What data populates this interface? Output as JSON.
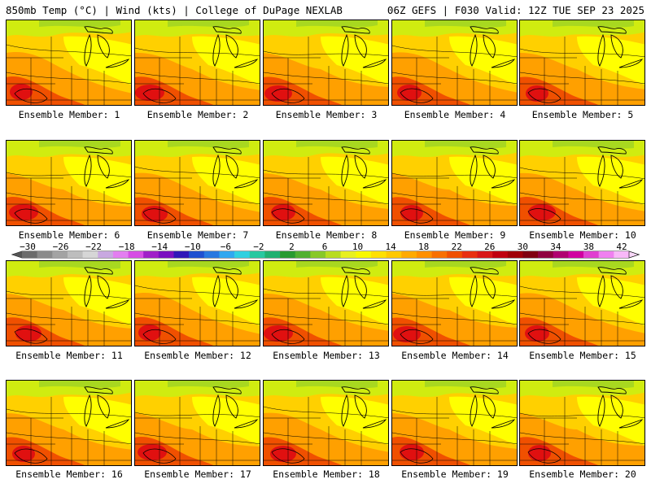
{
  "header": {
    "left": "850mb Temp (°C) | Wind (kts) | College of DuPage NEXLAB",
    "right": "06Z GEFS | F030 Valid: 12Z TUE SEP 23 2025"
  },
  "panels": [
    {
      "label": "Ensemble Member: 1"
    },
    {
      "label": "Ensemble Member: 2"
    },
    {
      "label": "Ensemble Member: 3"
    },
    {
      "label": "Ensemble Member: 4"
    },
    {
      "label": "Ensemble Member: 5"
    },
    {
      "label": "Ensemble Member: 6"
    },
    {
      "label": "Ensemble Member: 7"
    },
    {
      "label": "Ensemble Member: 8"
    },
    {
      "label": "Ensemble Member: 9"
    },
    {
      "label": "Ensemble Member: 10"
    },
    {
      "label": "Ensemble Member: 11"
    },
    {
      "label": "Ensemble Member: 12"
    },
    {
      "label": "Ensemble Member: 13"
    },
    {
      "label": "Ensemble Member: 14"
    },
    {
      "label": "Ensemble Member: 15"
    },
    {
      "label": "Ensemble Member: 16"
    },
    {
      "label": "Ensemble Member: 17"
    },
    {
      "label": "Ensemble Member: 18"
    },
    {
      "label": "Ensemble Member: 19"
    },
    {
      "label": "Ensemble Member: 20"
    }
  ],
  "colorbar": {
    "ticks": [
      "−30",
      "−26",
      "−22",
      "−18",
      "−14",
      "−10",
      "−6",
      "−2",
      "2",
      "6",
      "10",
      "14",
      "18",
      "22",
      "26",
      "30",
      "34",
      "38",
      "42"
    ],
    "colors": [
      "#6b6b6b",
      "#8a8a8a",
      "#a3a3a3",
      "#bdbdbd",
      "#d6d6d6",
      "#c8a8e0",
      "#e37ef0",
      "#d64ce4",
      "#a020c8",
      "#7a10c0",
      "#3018b8",
      "#1f50d0",
      "#2878e0",
      "#30a8f0",
      "#30d0e0",
      "#28c8a0",
      "#20b070",
      "#289a30",
      "#50b030",
      "#88c828",
      "#b8dc20",
      "#e8f020",
      "#f8f800",
      "#ffe000",
      "#ffc800",
      "#ffaa00",
      "#ff9000",
      "#f87000",
      "#f05000",
      "#e83010",
      "#d81818",
      "#c00010",
      "#a00008",
      "#800010",
      "#900040",
      "#b00070",
      "#d000a0",
      "#e040d0",
      "#f080f0",
      "#f8b8f8"
    ]
  },
  "colors": {
    "yellow": "#ffff00",
    "gold": "#ffd000",
    "orange": "#ffa000",
    "red_orange": "#f05000",
    "red": "#e01010",
    "green": "#a8d820",
    "light_green": "#d0ec10"
  }
}
